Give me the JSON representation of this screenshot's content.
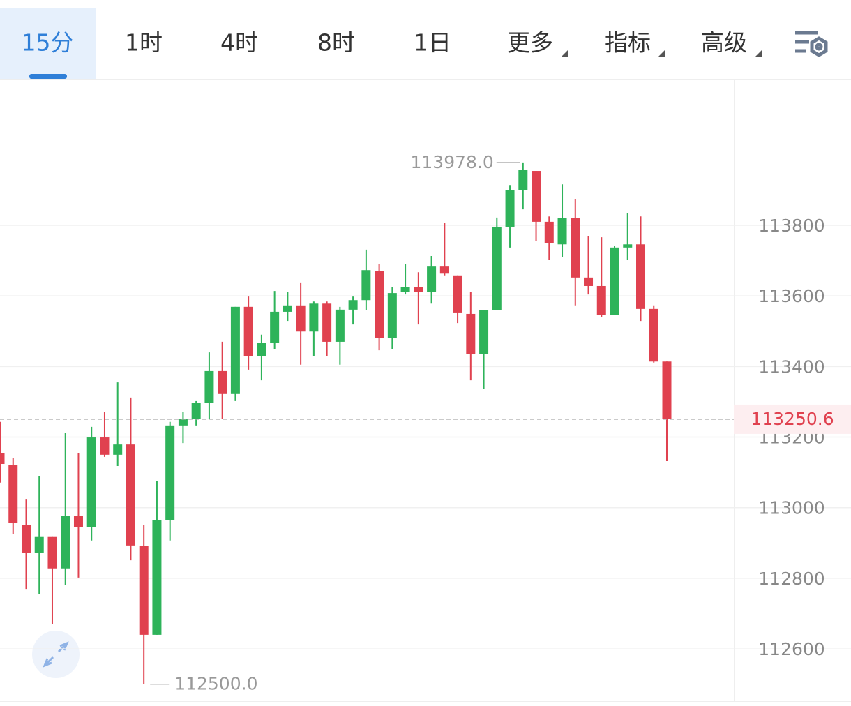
{
  "tabs": [
    "15分",
    "1时",
    "4时",
    "8时",
    "1日",
    "更多",
    "指标",
    "高级"
  ],
  "chart_data": {
    "type": "candlestick",
    "up_color": "#2eb35a",
    "down_color": "#e0414f",
    "ylim": [
      112452,
      114211
    ],
    "yticks": [
      112600,
      112800,
      113000,
      113200,
      113400,
      113600,
      113800
    ],
    "grid": true,
    "open": [
      113154,
      113120,
      112952,
      112873,
      112917,
      112828,
      112976,
      112946,
      113199,
      113150,
      113179,
      112891,
      112640,
      112964,
      113233,
      113252,
      113296,
      113387,
      113322,
      113569,
      113430,
      113466,
      113555,
      113573,
      113499,
      113578,
      113470,
      113561,
      113588,
      113671,
      113480,
      113612,
      113624,
      113612,
      113683,
      113658,
      113549,
      113436,
      113559,
      113796,
      113899,
      113954,
      113810,
      113746,
      113821,
      113652,
      113628,
      113545,
      113737,
      113746,
      113563,
      113414
    ],
    "high": [
      113243,
      113140,
      113025,
      113090,
      112917,
      113213,
      113154,
      113229,
      113272,
      113355,
      113312,
      112952,
      113075,
      113243,
      113272,
      113302,
      113440,
      113470,
      113569,
      113598,
      113490,
      113614,
      113612,
      113638,
      113584,
      113584,
      113569,
      113598,
      113731,
      113691,
      113624,
      113691,
      113667,
      113713,
      113806,
      113658,
      113612,
      113559,
      113822,
      113914,
      113978,
      113954,
      113825,
      113916,
      113875,
      113770,
      113766,
      113742,
      113835,
      113825,
      113573,
      113414
    ],
    "low": [
      113071,
      112926,
      112768,
      112755,
      112670,
      112782,
      112802,
      112907,
      113144,
      113118,
      112851,
      112500,
      112640,
      112907,
      113183,
      113233,
      113252,
      113252,
      113302,
      113391,
      113361,
      113450,
      113529,
      113405,
      113430,
      113430,
      113405,
      113519,
      113559,
      113446,
      113450,
      113604,
      113519,
      113578,
      113658,
      113523,
      113361,
      113337,
      113559,
      113737,
      113845,
      113756,
      113703,
      113711,
      113573,
      113604,
      113539,
      113545,
      113703,
      113529,
      113411,
      113132
    ],
    "close": [
      113124,
      112956,
      112873,
      112917,
      112828,
      112976,
      112946,
      113199,
      113150,
      113179,
      112893,
      112640,
      112964,
      113233,
      113252,
      113296,
      113387,
      113322,
      113569,
      113430,
      113466,
      113555,
      113573,
      113499,
      113578,
      113470,
      113561,
      113588,
      113673,
      113480,
      113608,
      113624,
      113612,
      113683,
      113663,
      113553,
      113436,
      113559,
      113796,
      113899,
      113958,
      113810,
      113750,
      113821,
      113652,
      113628,
      113545,
      113737,
      113746,
      113563,
      113414,
      113250.6
    ],
    "max_label": {
      "value": 113978,
      "label": "113978.0"
    },
    "min_label": {
      "value": 112500,
      "label": "112500.0"
    },
    "last_price": 113250.6
  }
}
